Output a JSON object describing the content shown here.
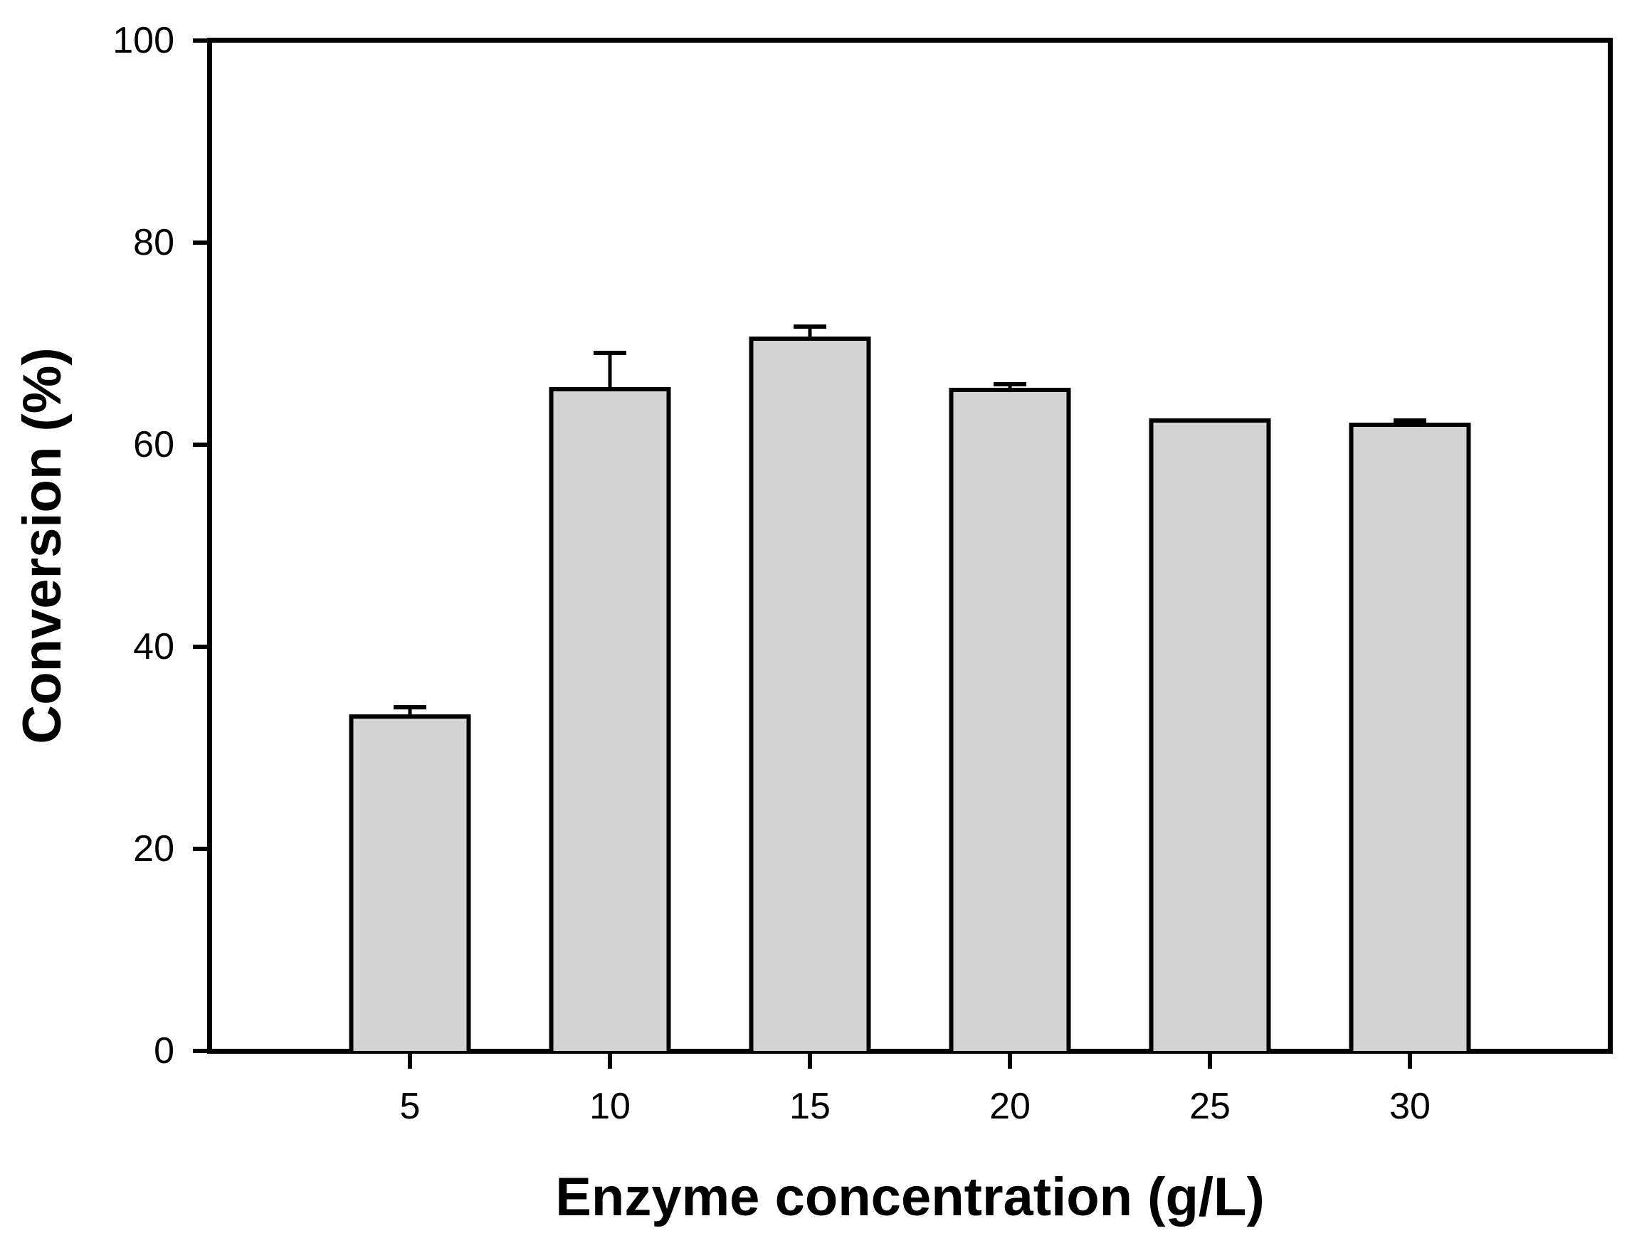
{
  "chart_data": {
    "type": "bar",
    "title": "",
    "xlabel": "Enzyme concentration (g/L)",
    "ylabel": "Conversion (%)",
    "categories": [
      "5",
      "10",
      "15",
      "20",
      "25",
      "30"
    ],
    "values": [
      33.3,
      65.7,
      70.7,
      65.6,
      62.6,
      62.2
    ],
    "errors_plus": [
      0.7,
      3.4,
      1.0,
      0.4,
      0,
      0.2
    ],
    "ylim": [
      0,
      100
    ],
    "yticks": [
      0,
      20,
      40,
      60,
      80,
      100
    ],
    "xticks": [
      "5",
      "10",
      "15",
      "20",
      "25",
      "30"
    ],
    "grid": "off",
    "legend": "none",
    "frame": "full-box",
    "colors": {
      "bar_fill": "#d3d3d3",
      "bar_edge": "#000000",
      "axis": "#000000",
      "text": "#000000",
      "background": "#ffffff"
    }
  }
}
